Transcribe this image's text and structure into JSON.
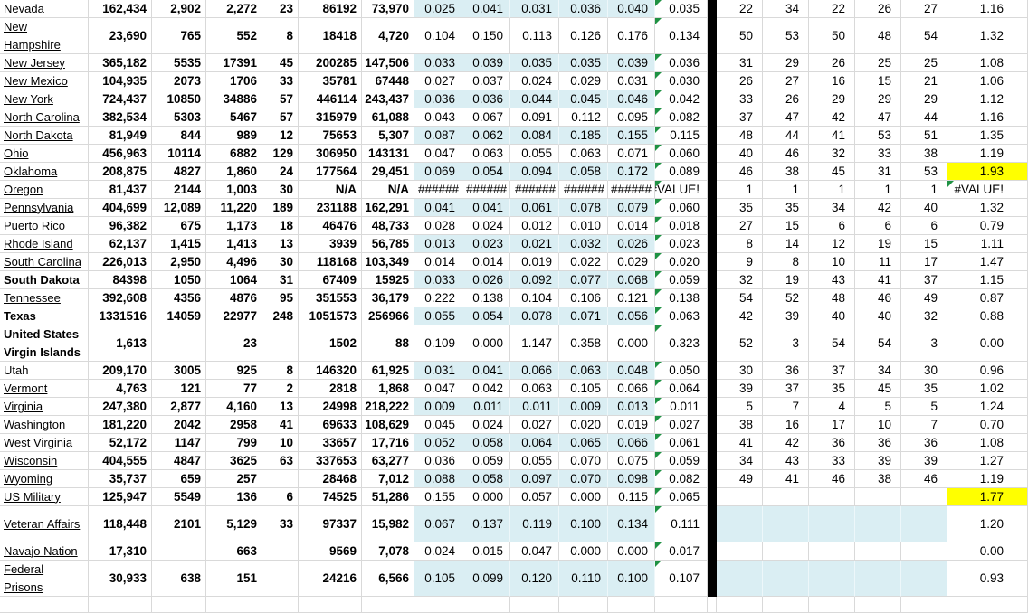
{
  "sheet": {
    "colors": {
      "band": "#daeef3",
      "highlight": "#ffff00",
      "error_flag_green": "#1f9243",
      "separator_black": "#000000",
      "gridline": "#d9d9d9"
    },
    "rows": [
      {
        "name": "Nevada",
        "style": "link",
        "tall": false,
        "counts": [
          "162,434",
          "2,902",
          "2,272",
          "23",
          "86192",
          "73,970"
        ],
        "rates": [
          "0.025",
          "0.041",
          "0.031",
          "0.036",
          "0.040"
        ],
        "rates_banded": true,
        "avg": "0.035",
        "avg_flag": true,
        "ranks": [
          "22",
          "34",
          "22",
          "26",
          "27"
        ],
        "ranks_banded": false,
        "final": "1.16",
        "final_highlight": false,
        "final_flag": false
      },
      {
        "name": "New Hampshire",
        "style": "link",
        "tall": true,
        "counts": [
          "23,690",
          "765",
          "552",
          "8",
          "18418",
          "4,720"
        ],
        "rates": [
          "0.104",
          "0.150",
          "0.113",
          "0.126",
          "0.176"
        ],
        "rates_banded": false,
        "avg": "0.134",
        "avg_flag": true,
        "ranks": [
          "50",
          "53",
          "50",
          "48",
          "54"
        ],
        "ranks_banded": false,
        "final": "1.32",
        "final_highlight": false,
        "final_flag": false
      },
      {
        "name": "New Jersey",
        "style": "link",
        "tall": false,
        "counts": [
          "365,182",
          "5535",
          "17391",
          "45",
          "200285",
          "147,506"
        ],
        "rates": [
          "0.033",
          "0.039",
          "0.035",
          "0.035",
          "0.039"
        ],
        "rates_banded": true,
        "avg": "0.036",
        "avg_flag": true,
        "ranks": [
          "31",
          "29",
          "26",
          "25",
          "25"
        ],
        "ranks_banded": false,
        "final": "1.08",
        "final_highlight": false,
        "final_flag": false
      },
      {
        "name": "New Mexico",
        "style": "link",
        "tall": false,
        "counts": [
          "104,935",
          "2073",
          "1706",
          "33",
          "35781",
          "67448"
        ],
        "rates": [
          "0.027",
          "0.037",
          "0.024",
          "0.029",
          "0.031"
        ],
        "rates_banded": false,
        "avg": "0.030",
        "avg_flag": true,
        "ranks": [
          "26",
          "27",
          "16",
          "15",
          "21"
        ],
        "ranks_banded": false,
        "final": "1.06",
        "final_highlight": false,
        "final_flag": false
      },
      {
        "name": "New York",
        "style": "link",
        "tall": false,
        "counts": [
          "724,437",
          "10850",
          "34886",
          "57",
          "446114",
          "243,437"
        ],
        "rates": [
          "0.036",
          "0.036",
          "0.044",
          "0.045",
          "0.046"
        ],
        "rates_banded": true,
        "avg": "0.042",
        "avg_flag": true,
        "ranks": [
          "33",
          "26",
          "29",
          "29",
          "29"
        ],
        "ranks_banded": false,
        "final": "1.12",
        "final_highlight": false,
        "final_flag": false
      },
      {
        "name": "North Carolina",
        "style": "link",
        "tall": false,
        "counts": [
          "382,534",
          "5303",
          "5467",
          "57",
          "315979",
          "61,088"
        ],
        "rates": [
          "0.043",
          "0.067",
          "0.091",
          "0.112",
          "0.095"
        ],
        "rates_banded": false,
        "avg": "0.082",
        "avg_flag": true,
        "ranks": [
          "37",
          "47",
          "42",
          "47",
          "44"
        ],
        "ranks_banded": false,
        "final": "1.16",
        "final_highlight": false,
        "final_flag": false
      },
      {
        "name": "North Dakota",
        "style": "link",
        "tall": false,
        "counts": [
          "81,949",
          "844",
          "989",
          "12",
          "75653",
          "5,307"
        ],
        "rates": [
          "0.087",
          "0.062",
          "0.084",
          "0.185",
          "0.155"
        ],
        "rates_banded": true,
        "avg": "0.115",
        "avg_flag": true,
        "ranks": [
          "48",
          "44",
          "41",
          "53",
          "51"
        ],
        "ranks_banded": false,
        "final": "1.35",
        "final_highlight": false,
        "final_flag": false
      },
      {
        "name": "Ohio",
        "style": "link",
        "tall": false,
        "counts": [
          "456,963",
          "10114",
          "6882",
          "129",
          "306950",
          "143131"
        ],
        "rates": [
          "0.047",
          "0.063",
          "0.055",
          "0.063",
          "0.071"
        ],
        "rates_banded": false,
        "avg": "0.060",
        "avg_flag": true,
        "ranks": [
          "40",
          "46",
          "32",
          "33",
          "38"
        ],
        "ranks_banded": false,
        "final": "1.19",
        "final_highlight": false,
        "final_flag": false
      },
      {
        "name": "Oklahoma",
        "style": "link",
        "tall": false,
        "counts": [
          "208,875",
          "4827",
          "1,860",
          "24",
          "177564",
          "29,451"
        ],
        "rates": [
          "0.069",
          "0.054",
          "0.094",
          "0.058",
          "0.172"
        ],
        "rates_banded": true,
        "avg": "0.089",
        "avg_flag": true,
        "ranks": [
          "46",
          "38",
          "45",
          "31",
          "53"
        ],
        "ranks_banded": false,
        "final": "1.93",
        "final_highlight": true,
        "final_flag": false
      },
      {
        "name": "Oregon",
        "style": "link",
        "tall": false,
        "counts": [
          "81,437",
          "2144",
          "1,003",
          "30",
          "N/A",
          "N/A"
        ],
        "rates": [
          "######",
          "######",
          "######",
          "######",
          "######"
        ],
        "rates_banded": false,
        "avg": "#VALUE!",
        "avg_flag": true,
        "ranks": [
          "1",
          "1",
          "1",
          "1",
          "1"
        ],
        "ranks_banded": false,
        "final": "#VALUE!",
        "final_highlight": false,
        "final_flag": true
      },
      {
        "name": "Pennsylvania",
        "style": "link",
        "tall": false,
        "counts": [
          "404,699",
          "12,089",
          "11,220",
          "189",
          "231188",
          "162,291"
        ],
        "rates": [
          "0.041",
          "0.041",
          "0.061",
          "0.078",
          "0.079"
        ],
        "rates_banded": true,
        "avg": "0.060",
        "avg_flag": true,
        "ranks": [
          "35",
          "35",
          "34",
          "42",
          "40"
        ],
        "ranks_banded": false,
        "final": "1.32",
        "final_highlight": false,
        "final_flag": false
      },
      {
        "name": "Puerto Rico",
        "style": "link",
        "tall": false,
        "counts": [
          "96,382",
          "675",
          "1,173",
          "18",
          "46476",
          "48,733"
        ],
        "rates": [
          "0.028",
          "0.024",
          "0.012",
          "0.010",
          "0.014"
        ],
        "rates_banded": false,
        "avg": "0.018",
        "avg_flag": true,
        "ranks": [
          "27",
          "15",
          "6",
          "6",
          "6"
        ],
        "ranks_banded": false,
        "final": "0.79",
        "final_highlight": false,
        "final_flag": false
      },
      {
        "name": "Rhode Island",
        "style": "link",
        "tall": false,
        "counts": [
          "62,137",
          "1,415",
          "1,413",
          "13",
          "3939",
          "56,785"
        ],
        "rates": [
          "0.013",
          "0.023",
          "0.021",
          "0.032",
          "0.026"
        ],
        "rates_banded": true,
        "avg": "0.023",
        "avg_flag": true,
        "ranks": [
          "8",
          "14",
          "12",
          "19",
          "15"
        ],
        "ranks_banded": false,
        "final": "1.11",
        "final_highlight": false,
        "final_flag": false
      },
      {
        "name": "South Carolina",
        "style": "link",
        "tall": false,
        "counts": [
          "226,013",
          "2,950",
          "4,496",
          "30",
          "118168",
          "103,349"
        ],
        "rates": [
          "0.014",
          "0.014",
          "0.019",
          "0.022",
          "0.029"
        ],
        "rates_banded": false,
        "avg": "0.020",
        "avg_flag": true,
        "ranks": [
          "9",
          "8",
          "10",
          "11",
          "17"
        ],
        "ranks_banded": false,
        "final": "1.47",
        "final_highlight": false,
        "final_flag": false
      },
      {
        "name": "South Dakota",
        "style": "bold",
        "tall": false,
        "counts": [
          "84398",
          "1050",
          "1064",
          "31",
          "67409",
          "15925"
        ],
        "rates": [
          "0.033",
          "0.026",
          "0.092",
          "0.077",
          "0.068"
        ],
        "rates_banded": true,
        "avg": "0.059",
        "avg_flag": true,
        "ranks": [
          "32",
          "19",
          "43",
          "41",
          "37"
        ],
        "ranks_banded": false,
        "final": "1.15",
        "final_highlight": false,
        "final_flag": false
      },
      {
        "name": "Tennessee",
        "style": "link",
        "tall": false,
        "counts": [
          "392,608",
          "4356",
          "4876",
          "95",
          "351553",
          "36,179"
        ],
        "rates": [
          "0.222",
          "0.138",
          "0.104",
          "0.106",
          "0.121"
        ],
        "rates_banded": false,
        "avg": "0.138",
        "avg_flag": true,
        "ranks": [
          "54",
          "52",
          "48",
          "46",
          "49"
        ],
        "ranks_banded": false,
        "final": "0.87",
        "final_highlight": false,
        "final_flag": false
      },
      {
        "name": "Texas",
        "style": "bold",
        "tall": false,
        "counts": [
          "1331516",
          "14059",
          "22977",
          "248",
          "1051573",
          "256966"
        ],
        "rates": [
          "0.055",
          "0.054",
          "0.078",
          "0.071",
          "0.056"
        ],
        "rates_banded": true,
        "avg": "0.063",
        "avg_flag": true,
        "ranks": [
          "42",
          "39",
          "40",
          "40",
          "32"
        ],
        "ranks_banded": false,
        "final": "0.88",
        "final_highlight": false,
        "final_flag": false
      },
      {
        "name": "United States Virgin Islands",
        "style": "bold",
        "tall": true,
        "counts": [
          "1,613",
          "",
          "23",
          "",
          "1502",
          "88"
        ],
        "rates": [
          "0.109",
          "0.000",
          "1.147",
          "0.358",
          "0.000"
        ],
        "rates_banded": false,
        "avg": "0.323",
        "avg_flag": true,
        "ranks": [
          "52",
          "3",
          "54",
          "54",
          "3"
        ],
        "ranks_banded": false,
        "final": "0.00",
        "final_highlight": false,
        "final_flag": false
      },
      {
        "name": "Utah",
        "style": "plain",
        "tall": false,
        "counts": [
          "209,170",
          "3005",
          "925",
          "8",
          "146320",
          "61,925"
        ],
        "rates": [
          "0.031",
          "0.041",
          "0.066",
          "0.063",
          "0.048"
        ],
        "rates_banded": true,
        "avg": "0.050",
        "avg_flag": true,
        "ranks": [
          "30",
          "36",
          "37",
          "34",
          "30"
        ],
        "ranks_banded": false,
        "final": "0.96",
        "final_highlight": false,
        "final_flag": false
      },
      {
        "name": "Vermont",
        "style": "link",
        "tall": false,
        "counts": [
          "4,763",
          "121",
          "77",
          "2",
          "2818",
          "1,868"
        ],
        "rates": [
          "0.047",
          "0.042",
          "0.063",
          "0.105",
          "0.066"
        ],
        "rates_banded": false,
        "avg": "0.064",
        "avg_flag": true,
        "ranks": [
          "39",
          "37",
          "35",
          "45",
          "35"
        ],
        "ranks_banded": false,
        "final": "1.02",
        "final_highlight": false,
        "final_flag": false
      },
      {
        "name": "Virginia",
        "style": "link",
        "tall": false,
        "counts": [
          "247,380",
          "2,877",
          "4,160",
          "13",
          "24998",
          "218,222"
        ],
        "rates": [
          "0.009",
          "0.011",
          "0.011",
          "0.009",
          "0.013"
        ],
        "rates_banded": true,
        "avg": "0.011",
        "avg_flag": true,
        "ranks": [
          "5",
          "7",
          "4",
          "5",
          "5"
        ],
        "ranks_banded": false,
        "final": "1.24",
        "final_highlight": false,
        "final_flag": false
      },
      {
        "name": "Washington",
        "style": "plain",
        "tall": false,
        "counts": [
          "181,220",
          "2042",
          "2958",
          "41",
          "69633",
          "108,629"
        ],
        "rates": [
          "0.045",
          "0.024",
          "0.027",
          "0.020",
          "0.019"
        ],
        "rates_banded": false,
        "avg": "0.027",
        "avg_flag": true,
        "ranks": [
          "38",
          "16",
          "17",
          "10",
          "7"
        ],
        "ranks_banded": false,
        "final": "0.70",
        "final_highlight": false,
        "final_flag": false
      },
      {
        "name": "West Virginia",
        "style": "link",
        "tall": false,
        "counts": [
          "52,172",
          "1147",
          "799",
          "10",
          "33657",
          "17,716"
        ],
        "rates": [
          "0.052",
          "0.058",
          "0.064",
          "0.065",
          "0.066"
        ],
        "rates_banded": true,
        "avg": "0.061",
        "avg_flag": true,
        "ranks": [
          "41",
          "42",
          "36",
          "36",
          "36"
        ],
        "ranks_banded": false,
        "final": "1.08",
        "final_highlight": false,
        "final_flag": false
      },
      {
        "name": "Wisconsin",
        "style": "link",
        "tall": false,
        "counts": [
          "404,555",
          "4847",
          "3625",
          "63",
          "337653",
          "63,277"
        ],
        "rates": [
          "0.036",
          "0.059",
          "0.055",
          "0.070",
          "0.075"
        ],
        "rates_banded": false,
        "avg": "0.059",
        "avg_flag": true,
        "ranks": [
          "34",
          "43",
          "33",
          "39",
          "39"
        ],
        "ranks_banded": false,
        "final": "1.27",
        "final_highlight": false,
        "final_flag": false
      },
      {
        "name": "Wyoming",
        "style": "link",
        "tall": false,
        "counts": [
          "35,737",
          "659",
          "257",
          "",
          "28468",
          "7,012"
        ],
        "rates": [
          "0.088",
          "0.058",
          "0.097",
          "0.070",
          "0.098"
        ],
        "rates_banded": true,
        "avg": "0.082",
        "avg_flag": true,
        "ranks": [
          "49",
          "41",
          "46",
          "38",
          "46"
        ],
        "ranks_banded": false,
        "final": "1.19",
        "final_highlight": false,
        "final_flag": false
      },
      {
        "name": "US Military",
        "style": "link",
        "tall": false,
        "counts": [
          "125,947",
          "5549",
          "136",
          "6",
          "74525",
          "51,286"
        ],
        "rates": [
          "0.155",
          "0.000",
          "0.057",
          "0.000",
          "0.115"
        ],
        "rates_banded": false,
        "avg": "0.065",
        "avg_flag": true,
        "ranks": [
          "",
          "",
          "",
          "",
          ""
        ],
        "ranks_banded": false,
        "final": "1.77",
        "final_highlight": true,
        "final_flag": false
      },
      {
        "name": "Veteran Affairs",
        "style": "link",
        "tall": true,
        "counts": [
          "118,448",
          "2101",
          "5,129",
          "33",
          "97337",
          "15,982"
        ],
        "rates": [
          "0.067",
          "0.137",
          "0.119",
          "0.100",
          "0.134"
        ],
        "rates_banded": true,
        "avg": "0.111",
        "avg_flag": true,
        "ranks": [
          "",
          "",
          "",
          "",
          ""
        ],
        "ranks_banded": true,
        "final": "1.20",
        "final_highlight": false,
        "final_flag": false
      },
      {
        "name": "Navajo Nation",
        "style": "link",
        "tall": false,
        "counts": [
          "17,310",
          "",
          "663",
          "",
          "9569",
          "7,078"
        ],
        "rates": [
          "0.024",
          "0.015",
          "0.047",
          "0.000",
          "0.000"
        ],
        "rates_banded": false,
        "avg": "0.017",
        "avg_flag": true,
        "ranks": [
          "",
          "",
          "",
          "",
          ""
        ],
        "ranks_banded": false,
        "final": "0.00",
        "final_highlight": false,
        "final_flag": false
      },
      {
        "name": "Federal Prisons",
        "style": "link",
        "tall": true,
        "counts": [
          "30,933",
          "638",
          "151",
          "",
          "24216",
          "6,566"
        ],
        "rates": [
          "0.105",
          "0.099",
          "0.120",
          "0.110",
          "0.100"
        ],
        "rates_banded": true,
        "avg": "0.107",
        "avg_flag": true,
        "ranks": [
          "",
          "",
          "",
          "",
          ""
        ],
        "ranks_banded": true,
        "final": "0.93",
        "final_highlight": false,
        "final_flag": false
      }
    ]
  }
}
